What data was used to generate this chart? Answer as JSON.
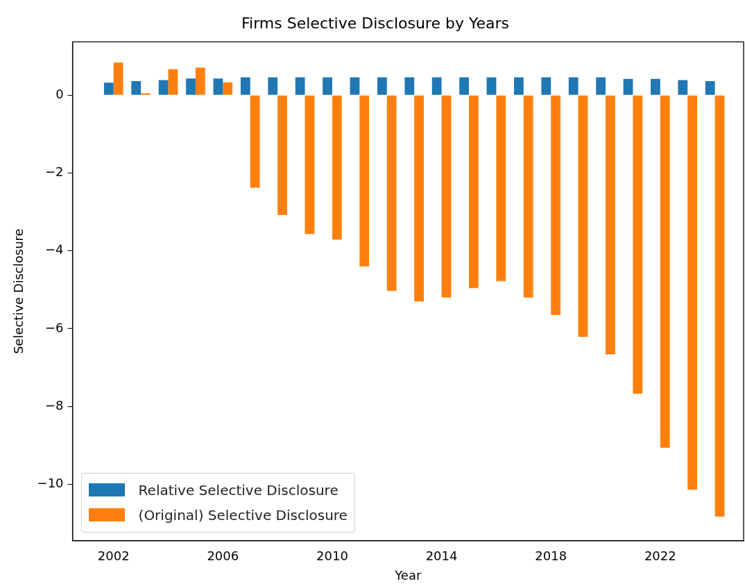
{
  "chart_data": {
    "type": "bar",
    "title": "Firms Selective Disclosure by Years",
    "xlabel": "Year",
    "ylabel": "Selective Disclosure",
    "x": [
      2002,
      2003,
      2004,
      2005,
      2006,
      2007,
      2008,
      2009,
      2010,
      2011,
      2012,
      2013,
      2014,
      2015,
      2016,
      2017,
      2018,
      2019,
      2020,
      2021,
      2022,
      2023,
      2024
    ],
    "series": [
      {
        "name": "Relative Selective Disclosure",
        "color": "#1f77b4",
        "values": [
          0.32,
          0.36,
          0.39,
          0.43,
          0.43,
          0.46,
          0.46,
          0.46,
          0.46,
          0.46,
          0.46,
          0.46,
          0.46,
          0.46,
          0.46,
          0.46,
          0.46,
          0.46,
          0.46,
          0.42,
          0.42,
          0.39,
          0.36
        ]
      },
      {
        "name": "(Original) Selective Disclosure",
        "color": "#ff7f0e",
        "values": [
          0.84,
          0.05,
          0.67,
          0.71,
          0.33,
          -2.38,
          -3.08,
          -3.57,
          -3.71,
          -4.4,
          -5.03,
          -5.3,
          -5.2,
          -4.96,
          -4.78,
          -5.2,
          -5.65,
          -6.21,
          -6.66,
          -7.67,
          -9.06,
          -10.14,
          -10.83
        ]
      }
    ],
    "xlim": [
      2000.5,
      2025.05
    ],
    "xticks": [
      2002,
      2006,
      2010,
      2014,
      2018,
      2022
    ],
    "ylim": [
      -11.45,
      1.37
    ],
    "yticks": [
      0,
      -2,
      -4,
      -6,
      -8,
      -10
    ],
    "legend": "bottom left"
  }
}
